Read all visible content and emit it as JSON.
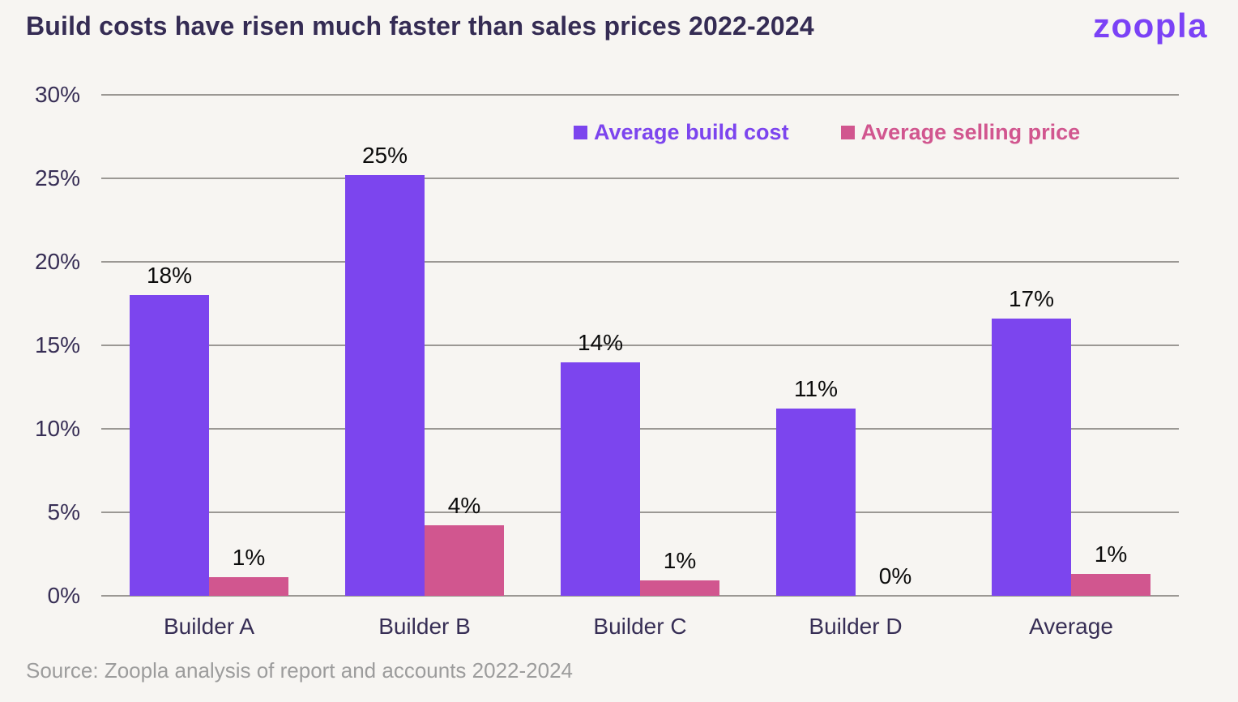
{
  "header": {
    "logo_text": "zoopla"
  },
  "chart_data": {
    "type": "bar",
    "title": "Build costs have risen much faster than sales prices 2022-2024",
    "categories": [
      "Builder A",
      "Builder B",
      "Builder C",
      "Builder D",
      "Average"
    ],
    "series": [
      {
        "name": "Average build cost",
        "color": "#7C45EE",
        "values": [
          18,
          25.2,
          14,
          11.2,
          16.6
        ],
        "data_labels": [
          "18%",
          "25%",
          "14%",
          "11%",
          "17%"
        ]
      },
      {
        "name": "Average selling price",
        "color": "#D1568F",
        "values": [
          1.1,
          4.2,
          0.9,
          0,
          1.3
        ],
        "data_labels": [
          "1%",
          "4%",
          "1%",
          "0%",
          "1%"
        ]
      }
    ],
    "ylim": [
      0,
      30
    ],
    "y_ticks": [
      "30%",
      "25%",
      "20%",
      "15%",
      "10%",
      "5%",
      "0%"
    ],
    "grid": true,
    "legend_position": "inside-top",
    "colors": {
      "background": "#F7F5F2",
      "title_text": "#352C54",
      "axis_text": "#372E55",
      "bar_label_text": "#0C0C0C",
      "gridline": "#9B9894",
      "logo": "#7B42F6",
      "source_text": "#9C9C9C"
    }
  },
  "footer": {
    "source": "Source: Zoopla analysis of report and accounts 2022-2024"
  }
}
